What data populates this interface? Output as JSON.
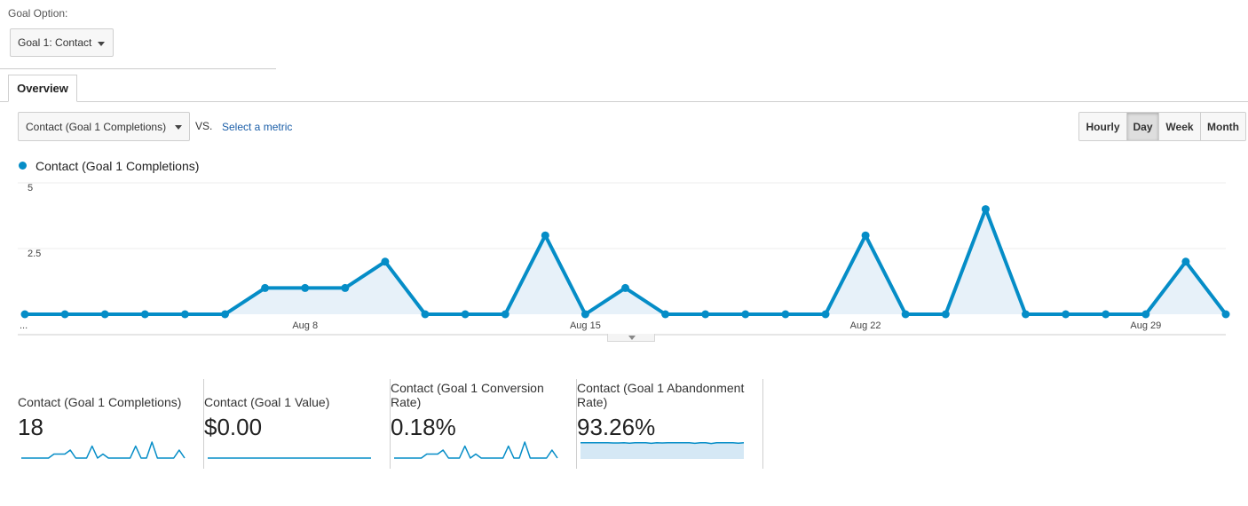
{
  "goal_option": {
    "label": "Goal Option:",
    "selected": "Goal 1: Contact"
  },
  "tabs": [
    {
      "label": "Overview"
    }
  ],
  "metric_selector": {
    "selected": "Contact (Goal 1 Completions)",
    "vs_label": "VS.",
    "select_metric_link": "Select a metric"
  },
  "time_range": {
    "options": [
      "Hourly",
      "Day",
      "Week",
      "Month"
    ],
    "active": "Day"
  },
  "colors": {
    "series": "#058dc7",
    "area": "#e7f1f9",
    "link": "#1a5ea8"
  },
  "chart_data": {
    "type": "area",
    "series": [
      {
        "name": "Contact (Goal 1 Completions)",
        "values": [
          0,
          0,
          0,
          0,
          0,
          0,
          1,
          1,
          1,
          2,
          0,
          0,
          0,
          3,
          0,
          1,
          0,
          0,
          0,
          0,
          0,
          3,
          0,
          0,
          4,
          0,
          0,
          0,
          0,
          2,
          0
        ]
      }
    ],
    "y_ticks": [
      "5",
      "2.5"
    ],
    "ylim": [
      0,
      5
    ],
    "x_tick_labels": [
      {
        "index": 0,
        "label": "..."
      },
      {
        "index": 7,
        "label": "Aug 8"
      },
      {
        "index": 14,
        "label": "Aug 15"
      },
      {
        "index": 21,
        "label": "Aug 22"
      },
      {
        "index": 28,
        "label": "Aug 29"
      }
    ],
    "grid": true,
    "legend_position": "top-left"
  },
  "metric_cards": [
    {
      "label": "Contact (Goal 1 Completions)",
      "value": "18",
      "sparkline": [
        0,
        0,
        0,
        0,
        0,
        0,
        1,
        1,
        1,
        2,
        0,
        0,
        0,
        3,
        0,
        1,
        0,
        0,
        0,
        0,
        0,
        3,
        0,
        0,
        4,
        0,
        0,
        0,
        0,
        2,
        0
      ],
      "sparkline_max": 4,
      "fill": false
    },
    {
      "label": "Contact (Goal 1 Value)",
      "value": "$0.00",
      "sparkline": [
        0,
        0,
        0,
        0,
        0,
        0,
        0,
        0,
        0,
        0,
        0,
        0,
        0,
        0,
        0,
        0,
        0,
        0,
        0,
        0,
        0,
        0,
        0,
        0,
        0,
        0,
        0,
        0,
        0,
        0,
        0
      ],
      "sparkline_max": 1,
      "fill": false
    },
    {
      "label": "Contact (Goal 1 Conversion Rate)",
      "value": "0.18%",
      "sparkline": [
        0,
        0,
        0,
        0,
        0,
        0,
        1,
        1,
        1,
        2,
        0,
        0,
        0,
        3,
        0,
        1,
        0,
        0,
        0,
        0,
        0,
        3,
        0,
        0,
        4,
        0,
        0,
        0,
        0,
        2,
        0
      ],
      "sparkline_max": 4,
      "fill": false
    },
    {
      "label": "Contact (Goal 1 Abandonment Rate)",
      "value": "93.26%",
      "sparkline": [
        96,
        96,
        96,
        96,
        96,
        96,
        95,
        95,
        96,
        94,
        96,
        96,
        96,
        93,
        96,
        95,
        96,
        96,
        96,
        96,
        96,
        93,
        96,
        96,
        92,
        96,
        96,
        96,
        96,
        94,
        96
      ],
      "sparkline_max": 100,
      "fill": true
    }
  ]
}
